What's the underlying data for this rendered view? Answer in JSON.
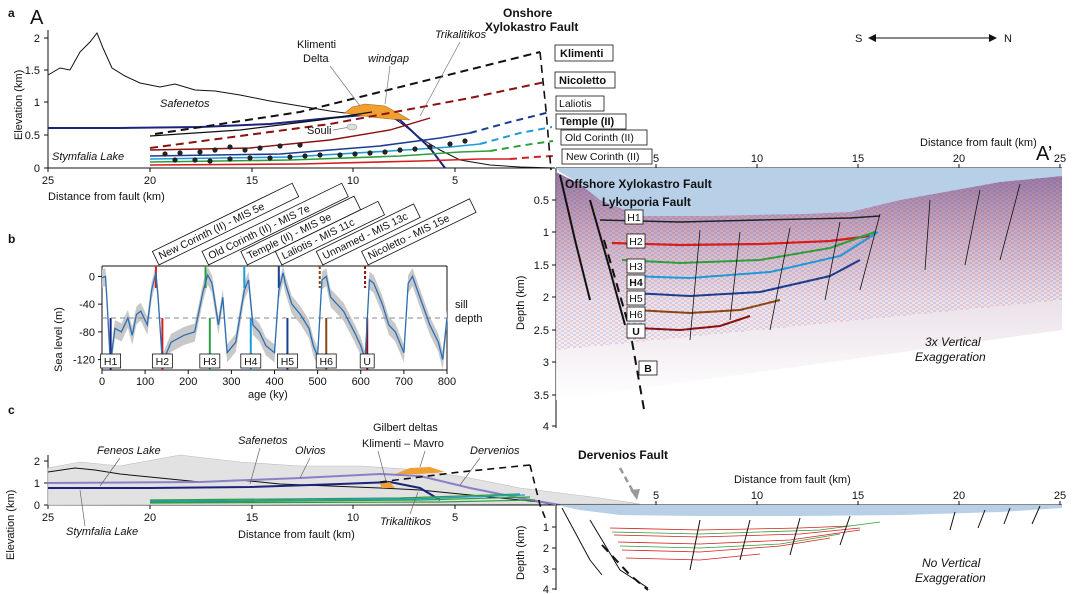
{
  "panel_a": {
    "panel_letter": "a",
    "section_start": "A",
    "section_end": "A’",
    "ylabel": "Elevation (km)",
    "xlabel": "Distance from fault (km)",
    "yticks": [
      "2",
      "1.5",
      "1",
      "0.5",
      "0"
    ],
    "xticks": [
      "25",
      "20",
      "15",
      "10",
      "5"
    ],
    "place_labels": {
      "safenetos": "Safenetos",
      "stymfalia": "Stymfalia Lake",
      "klimenti_delta_1": "Klimenti",
      "klimenti_delta_2": "Delta",
      "windgap": "windgap",
      "trikalitikos": "Trikalitikos",
      "souli": "Souli"
    },
    "fault_title_1": "Onshore",
    "fault_title_2": "Xylokastro Fault",
    "orientation_s": "S",
    "orientation_n": "N",
    "horizon_labels": [
      "Klimenti",
      "Nicoletto",
      "Laliotis",
      "Temple (II)",
      "Old Corinth (II)",
      "New Corinth (II)"
    ],
    "colors": {
      "klimenti": "#111111",
      "nicoletto": "#8b1010",
      "laliotis": "#1c3d8f",
      "temple": "#1f9ad6",
      "old_corinth": "#2e9e3a",
      "new_corinth": "#d61e1e",
      "topo": "#111111",
      "delta": "#f0a030",
      "stymfalia_line": "#1a237e"
    }
  },
  "seismic": {
    "xlabel": "Distance from fault (km)",
    "ylabel": "Depth (km)",
    "xticks": [
      "5",
      "10",
      "15",
      "20",
      "25"
    ],
    "yticks": [
      "0.5",
      "1",
      "1.5",
      "2",
      "2.5",
      "3",
      "3.5",
      "4"
    ],
    "fault_1": "Offshore Xylokastro Fault",
    "fault_2": "Lykoporia Fault",
    "horizons": [
      "H1",
      "H2",
      "H3",
      "H4",
      "H5",
      "H6",
      "U",
      "B"
    ],
    "exaggeration_1": "3x Vertical",
    "exaggeration_2": "Exaggeration",
    "water_color": "#b8cfe8"
  },
  "panel_b": {
    "panel_letter": "b",
    "chart_data": {
      "type": "line",
      "xlabel": "age (ky)",
      "ylabel": "Sea level (m)",
      "xlim": [
        0,
        800
      ],
      "ylim": [
        -135,
        15
      ],
      "xticks": [
        "0",
        "100",
        "200",
        "300",
        "400",
        "500",
        "600",
        "700",
        "800"
      ],
      "yticks": [
        "0",
        "-40",
        "-80",
        "-120"
      ],
      "sill_depth_value": -60,
      "sill_label_1": "sill",
      "sill_label_2": "depth",
      "series": [
        {
          "x": [
            0,
            8,
            12,
            18,
            20,
            30,
            45,
            60,
            70,
            80,
            90,
            105,
            115,
            125,
            130,
            140,
            150,
            160,
            190,
            215,
            235,
            245,
            255,
            270,
            280,
            290,
            310,
            330,
            340,
            350,
            365,
            380,
            400,
            410,
            420,
            425,
            440,
            460,
            480,
            490,
            500,
            510,
            520,
            530,
            560,
            585,
            600,
            610,
            620,
            630,
            650,
            665,
            680,
            700,
            710,
            720,
            740,
            760,
            780,
            790,
            800
          ],
          "y": [
            -2,
            0,
            -40,
            -110,
            -125,
            -75,
            -80,
            -60,
            -85,
            -55,
            -50,
            -70,
            -20,
            5,
            -30,
            -125,
            -110,
            -95,
            -85,
            -80,
            -20,
            2,
            -10,
            -70,
            -30,
            -110,
            -95,
            -20,
            -5,
            -70,
            -80,
            -100,
            -110,
            -20,
            5,
            -10,
            -40,
            -55,
            -75,
            -100,
            -115,
            -5,
            0,
            -30,
            -50,
            -80,
            -100,
            -120,
            -5,
            -10,
            -40,
            -70,
            -80,
            -110,
            -10,
            0,
            -35,
            -70,
            -95,
            -120,
            -60
          ]
        }
      ],
      "markers": [
        {
          "label": "New Corinth (II) - MIS 5e",
          "age": 125,
          "color": "#d61e1e"
        },
        {
          "label": "Old Corinth (II) - MIS 7e",
          "age": 240,
          "color": "#2e9e3a"
        },
        {
          "label": "Temple (II) - MIS 9e",
          "age": 330,
          "color": "#1f9ad6"
        },
        {
          "label": "Laliotis - MIS 11c",
          "age": 410,
          "color": "#1c3d8f"
        },
        {
          "label": "Unnamed - MIS 13c",
          "age": 505,
          "color": "#8b4513"
        },
        {
          "label": "Nicoletto - MIS 15e",
          "age": 610,
          "color": "#8b1010"
        }
      ],
      "horizon_tags": [
        {
          "label": "H1",
          "age": 20
        },
        {
          "label": "H2",
          "age": 140
        },
        {
          "label": "H3",
          "age": 250
        },
        {
          "label": "H4",
          "age": 345
        },
        {
          "label": "H5",
          "age": 430
        },
        {
          "label": "H6",
          "age": 520
        },
        {
          "label": "U",
          "age": 615
        }
      ]
    }
  },
  "panel_c": {
    "panel_letter": "c",
    "ylabel": "Elevation (km)",
    "xlabel": "Distance from fault (km)",
    "yticks": [
      "2",
      "1",
      "0"
    ],
    "xticks": [
      "25",
      "20",
      "15",
      "10",
      "5"
    ],
    "place_labels": {
      "feneos": "Feneos Lake",
      "safenetos": "Safenetos",
      "olvios": "Olvios",
      "gilbert": "Gilbert deltas",
      "klimenti_mavro": "Klimenti  –  Mavro",
      "dervenios": "Dervenios",
      "trikalitikos": "Trikalitikos",
      "stymfalia": "Stymfalia Lake"
    },
    "fault_label": "Dervenios Fault"
  },
  "seismic_c": {
    "xlabel": "Distance from fault (km)",
    "ylabel": "Depth (km)",
    "xticks": [
      "5",
      "10",
      "15",
      "20",
      "25"
    ],
    "yticks": [
      "1",
      "2",
      "3",
      "4"
    ],
    "exaggeration_1": "No Vertical",
    "exaggeration_2": "Exaggeration"
  }
}
